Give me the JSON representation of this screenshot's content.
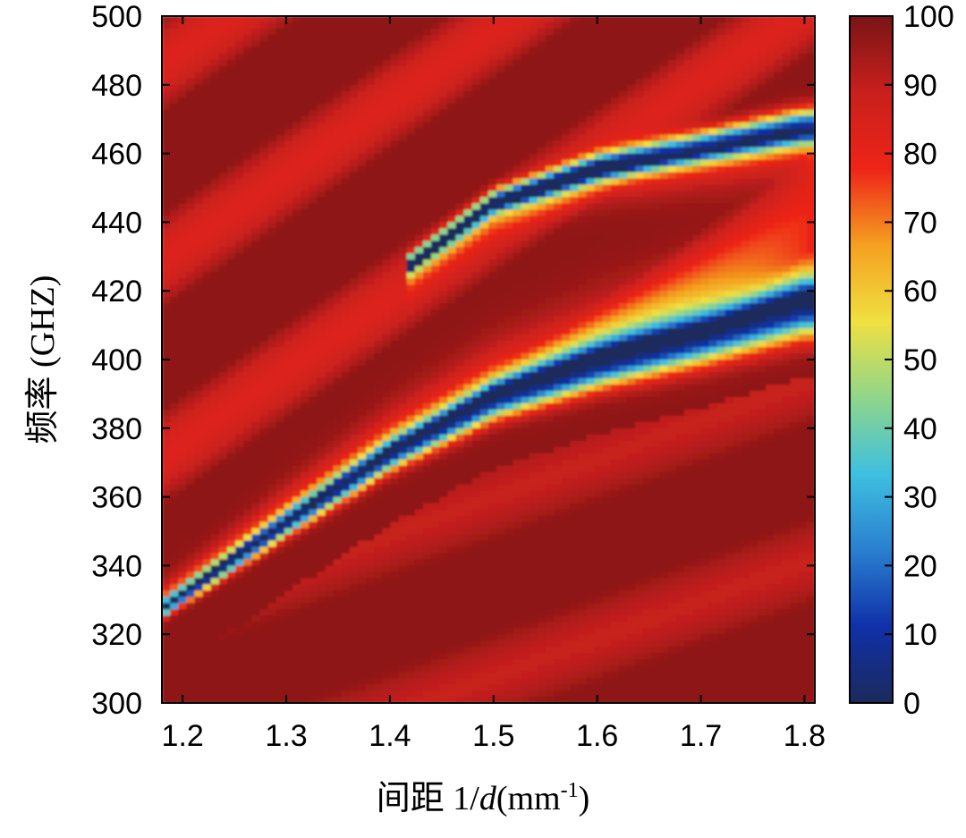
{
  "chart_data": {
    "type": "heatmap",
    "xlabel_prefix": "间距 1/",
    "xlabel_var": "d",
    "xlabel_unit_open": "(mm",
    "xlabel_unit_sup": "-1",
    "xlabel_unit_close": ")",
    "ylabel": "频率 (GHZ)",
    "xlim": [
      1.18,
      1.81
    ],
    "ylim": [
      300,
      500
    ],
    "x_ticks": [
      1.2,
      1.3,
      1.4,
      1.5,
      1.6,
      1.7,
      1.8
    ],
    "y_ticks": [
      300,
      320,
      340,
      360,
      380,
      400,
      420,
      440,
      460,
      480,
      500
    ],
    "colorbar": {
      "range": [
        0,
        100
      ],
      "ticks": [
        0,
        10,
        20,
        30,
        40,
        50,
        60,
        70,
        80,
        90,
        100
      ],
      "stops": [
        "#1b2a5c",
        "#1030a8",
        "#2a7fd0",
        "#3ec0e0",
        "#8fd68a",
        "#f0e040",
        "#f5a020",
        "#ee2418",
        "#c8201c",
        "#7a1416"
      ]
    },
    "features": [
      {
        "name": "main-dip",
        "min_value": 5,
        "points": [
          [
            1.18,
            327
          ],
          [
            1.3,
            352
          ],
          [
            1.4,
            372
          ],
          [
            1.5,
            388
          ],
          [
            1.6,
            398
          ],
          [
            1.7,
            406
          ],
          [
            1.8,
            415
          ]
        ]
      },
      {
        "name": "upper-dip",
        "min_value": 8,
        "points": [
          [
            1.42,
            428
          ],
          [
            1.5,
            446
          ],
          [
            1.6,
            456
          ],
          [
            1.7,
            462
          ],
          [
            1.8,
            468
          ]
        ]
      }
    ]
  }
}
